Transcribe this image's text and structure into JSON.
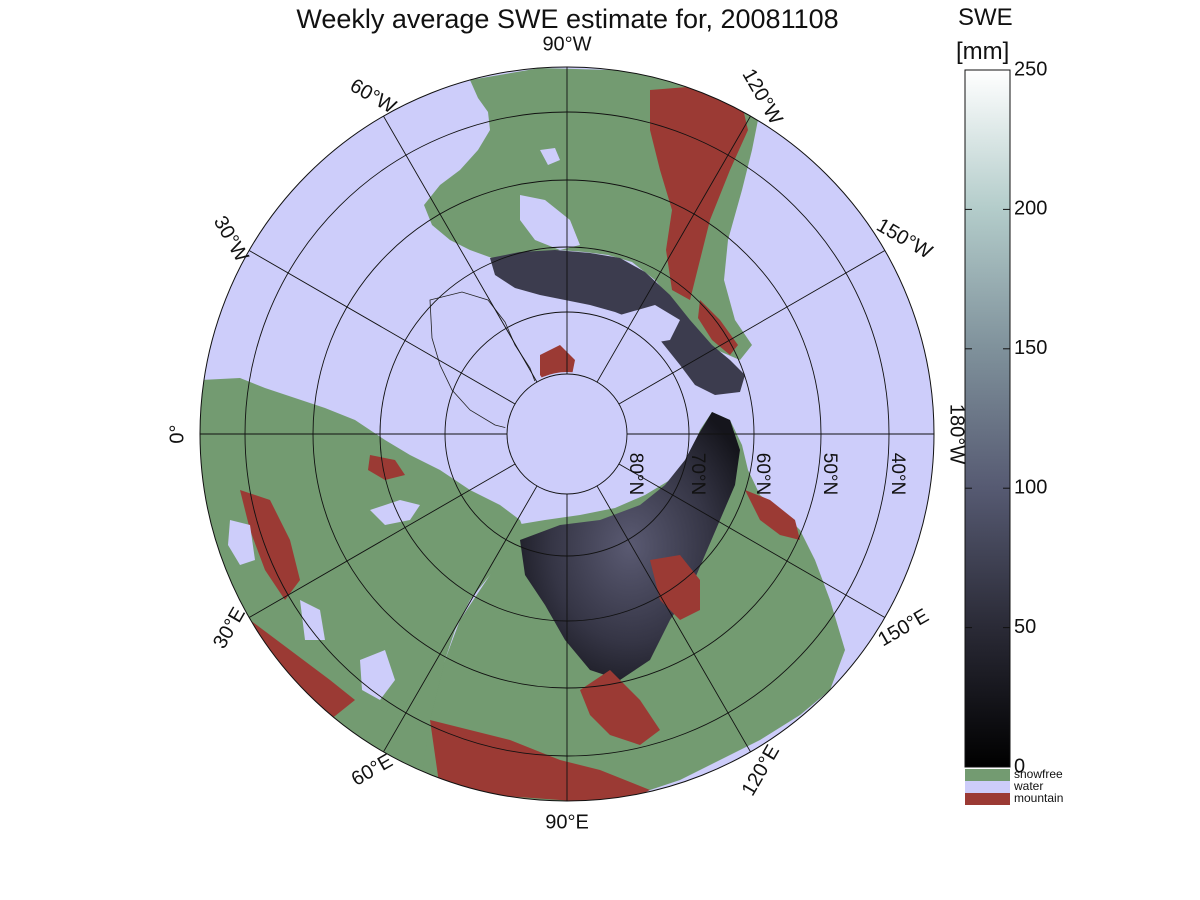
{
  "title": "Weekly average SWE estimate for, 20081108",
  "colorbar": {
    "label_line1": "SWE",
    "label_line2": "[mm]",
    "ticks": [
      0,
      50,
      100,
      150,
      200,
      250
    ],
    "range": [
      0,
      250
    ],
    "categories": [
      {
        "name": "snowfree",
        "color": "#739b71"
      },
      {
        "name": "water",
        "color": "#cdcdfa"
      },
      {
        "name": "mountain",
        "color": "#9b3a34"
      }
    ]
  },
  "map": {
    "projection": "north polar stereographic",
    "colors": {
      "water": "#cdcdfa",
      "snowfree": "#739b71",
      "mountain": "#9b3a34",
      "snow_low": "#1a1a22",
      "snow_mid": "#4a4a60"
    },
    "longitude_labels": [
      {
        "deg": 0,
        "text": "0°"
      },
      {
        "deg": 30,
        "text": "30°E"
      },
      {
        "deg": 60,
        "text": "60°E"
      },
      {
        "deg": 90,
        "text": "90°E"
      },
      {
        "deg": 120,
        "text": "120°E"
      },
      {
        "deg": 150,
        "text": "150°E"
      },
      {
        "deg": 180,
        "text": "180°W"
      },
      {
        "deg": 210,
        "text": "150°W"
      },
      {
        "deg": 240,
        "text": "120°W"
      },
      {
        "deg": 270,
        "text": "90°W"
      },
      {
        "deg": 300,
        "text": "60°W"
      },
      {
        "deg": 330,
        "text": "30°W"
      }
    ],
    "latitude_labels": [
      {
        "lat": 80,
        "text": "80°N"
      },
      {
        "lat": 70,
        "text": "70°N"
      },
      {
        "lat": 60,
        "text": "60°N"
      },
      {
        "lat": 50,
        "text": "50°N"
      },
      {
        "lat": 40,
        "text": "40°N"
      }
    ]
  }
}
